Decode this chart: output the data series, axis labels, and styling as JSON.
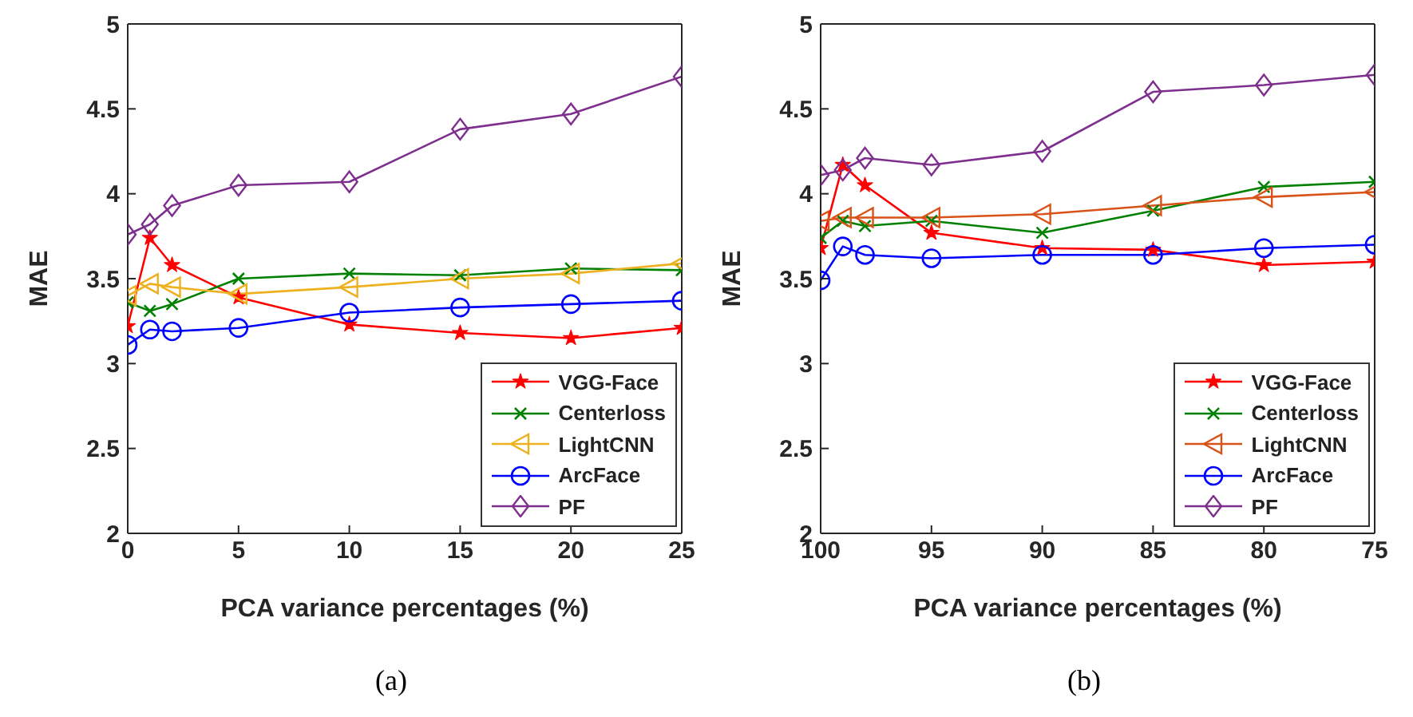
{
  "chart_data": [
    {
      "type": "line",
      "xlabel": "PCA variance percentages (%)",
      "ylabel": "MAE",
      "annotations": [
        "(a)"
      ],
      "x": [
        0,
        1,
        2,
        5,
        10,
        15,
        20,
        25
      ],
      "xlim": [
        0,
        25
      ],
      "xticks": [
        0,
        5,
        10,
        15,
        20,
        25
      ],
      "ylim": [
        2,
        5
      ],
      "yticks": [
        2,
        2.5,
        3,
        3.5,
        4,
        4.5,
        5
      ],
      "grid": false,
      "legend": "bottom right",
      "series": [
        {
          "name": "VGG-Face",
          "color": "#ff0000",
          "marker": "star",
          "values": [
            3.22,
            3.74,
            3.58,
            3.39,
            3.23,
            3.18,
            3.15,
            3.21
          ]
        },
        {
          "name": "Centerloss",
          "color": "#008000",
          "marker": "cross",
          "values": [
            3.36,
            3.31,
            3.35,
            3.5,
            3.53,
            3.52,
            3.56,
            3.55
          ]
        },
        {
          "name": "LightCNN",
          "color": "#edb120",
          "marker": "triangle",
          "values": [
            3.4,
            3.47,
            3.45,
            3.41,
            3.45,
            3.5,
            3.53,
            3.59
          ]
        },
        {
          "name": "ArcFace",
          "color": "#0000ff",
          "marker": "circle",
          "values": [
            3.11,
            3.2,
            3.19,
            3.21,
            3.3,
            3.33,
            3.35,
            3.37
          ]
        },
        {
          "name": "PF",
          "color": "#7e2f8e",
          "marker": "diamond",
          "values": [
            3.76,
            3.82,
            3.93,
            4.05,
            4.07,
            4.38,
            4.47,
            4.69
          ]
        }
      ]
    },
    {
      "type": "line",
      "xlabel": "PCA variance percentages (%)",
      "ylabel": "MAE",
      "annotations": [
        "(b)"
      ],
      "x": [
        100,
        99,
        98,
        95,
        90,
        85,
        80,
        75
      ],
      "xlim": [
        100,
        75
      ],
      "xticks": [
        100,
        95,
        90,
        85,
        80,
        75
      ],
      "ylim": [
        2,
        5
      ],
      "yticks": [
        2,
        2.5,
        3,
        3.5,
        4,
        4.5,
        5
      ],
      "grid": false,
      "legend": "bottom right",
      "series": [
        {
          "name": "VGG-Face",
          "color": "#ff0000",
          "marker": "star",
          "values": [
            3.68,
            4.17,
            4.05,
            3.77,
            3.68,
            3.67,
            3.58,
            3.6
          ]
        },
        {
          "name": "Centerloss",
          "color": "#008000",
          "marker": "cross",
          "values": [
            3.74,
            3.84,
            3.81,
            3.84,
            3.77,
            3.9,
            4.04,
            4.07
          ]
        },
        {
          "name": "LightCNN",
          "color": "#d95319",
          "marker": "triangle",
          "values": [
            3.84,
            3.86,
            3.86,
            3.86,
            3.88,
            3.93,
            3.98,
            4.01
          ]
        },
        {
          "name": "ArcFace",
          "color": "#0000ff",
          "marker": "circle",
          "values": [
            3.49,
            3.69,
            3.64,
            3.62,
            3.64,
            3.64,
            3.68,
            3.7
          ]
        },
        {
          "name": "PF",
          "color": "#7e2f8e",
          "marker": "diamond",
          "values": [
            4.11,
            4.14,
            4.21,
            4.17,
            4.25,
            4.6,
            4.64,
            4.7
          ]
        }
      ]
    }
  ]
}
